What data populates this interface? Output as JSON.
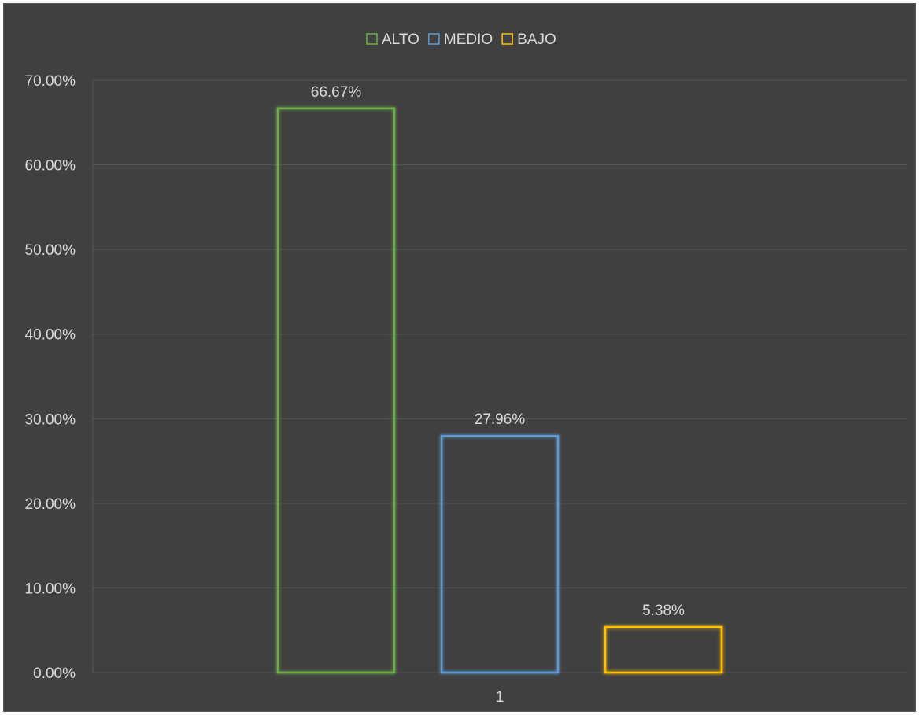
{
  "chart_data": {
    "type": "bar",
    "categories": [
      "1"
    ],
    "series": [
      {
        "name": "ALTO",
        "values": [
          66.67
        ],
        "label": "66.67%",
        "color": "#70AD47"
      },
      {
        "name": "MEDIO",
        "values": [
          27.96
        ],
        "label": "27.96%",
        "color": "#5B9BD5"
      },
      {
        "name": "BAJO",
        "values": [
          5.38
        ],
        "label": "5.38%",
        "color": "#FFC000"
      }
    ],
    "ylim": [
      0,
      70
    ],
    "yticks": [
      0,
      10,
      20,
      30,
      40,
      50,
      60,
      70
    ],
    "ytick_labels": [
      "0.00%",
      "10.00%",
      "20.00%",
      "30.00%",
      "40.00%",
      "50.00%",
      "60.00%",
      "70.00%"
    ],
    "grid": true,
    "legend_position": "top",
    "bar_style": "outline-glow",
    "background_color": "#404040",
    "gridline_color": "#595959",
    "text_color": "#d9d9d9"
  }
}
